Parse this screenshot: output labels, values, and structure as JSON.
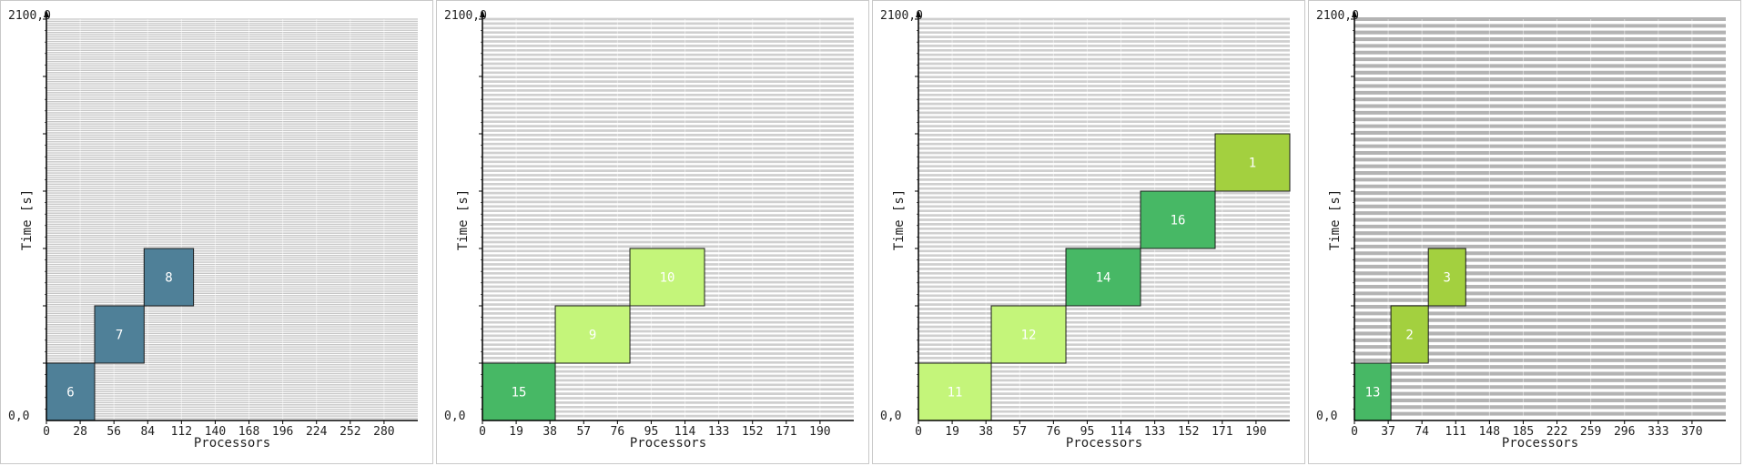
{
  "chart_data": [
    {
      "type": "gantt",
      "xlabel": "Processors",
      "ylabel": "Time [s]",
      "top_label": "2100,0",
      "origin_label": "0,0",
      "xlim": [
        0,
        308
      ],
      "ylim": [
        0,
        2100
      ],
      "x_ticks": [
        "0",
        "28",
        "56",
        "84",
        "112",
        "140",
        "168",
        "196",
        "224",
        "252",
        "280"
      ],
      "x_tick_values": [
        0,
        28,
        56,
        84,
        112,
        140,
        168,
        196,
        224,
        252,
        280
      ],
      "row_lines": 180,
      "color_grid": "#c6c6c6",
      "jobs": [
        {
          "label": "6",
          "x0": 0,
          "x1": 40,
          "y0": 0,
          "y1": 300,
          "color": "#4f8098",
          "text_color": "#ffffff"
        },
        {
          "label": "7",
          "x0": 40,
          "x1": 81,
          "y0": 300,
          "y1": 600,
          "color": "#4f8098",
          "text_color": "#ffffff"
        },
        {
          "label": "8",
          "x0": 81,
          "x1": 122,
          "y0": 600,
          "y1": 900,
          "color": "#4f8098",
          "text_color": "#ffffff"
        }
      ]
    },
    {
      "type": "gantt",
      "xlabel": "Processors",
      "ylabel": "Time [s]",
      "top_label": "2100,0",
      "origin_label": "0,0",
      "xlim": [
        0,
        209
      ],
      "ylim": [
        0,
        2100
      ],
      "x_ticks": [
        "0",
        "19",
        "38",
        "57",
        "76",
        "95",
        "114",
        "133",
        "152",
        "171",
        "190"
      ],
      "x_tick_values": [
        0,
        19,
        38,
        57,
        76,
        95,
        114,
        133,
        152,
        171,
        190
      ],
      "row_lines": 90,
      "color_grid": "#cfcfcf",
      "jobs": [
        {
          "label": "15",
          "x0": 0,
          "x1": 41,
          "y0": 0,
          "y1": 300,
          "color": "#47b865",
          "text_color": "#ffffff"
        },
        {
          "label": "9",
          "x0": 41,
          "x1": 83,
          "y0": 300,
          "y1": 600,
          "color": "#c4f57a",
          "text_color": "#ffffff"
        },
        {
          "label": "10",
          "x0": 83,
          "x1": 125,
          "y0": 600,
          "y1": 900,
          "color": "#c4f57a",
          "text_color": "#ffffff"
        }
      ]
    },
    {
      "type": "gantt",
      "xlabel": "Processors",
      "ylabel": "Time [s]",
      "top_label": "2100,0",
      "origin_label": "0,0",
      "xlim": [
        0,
        209
      ],
      "ylim": [
        0,
        2100
      ],
      "x_ticks": [
        "0",
        "19",
        "38",
        "57",
        "76",
        "95",
        "114",
        "133",
        "152",
        "171",
        "190"
      ],
      "x_tick_values": [
        0,
        19,
        38,
        57,
        76,
        95,
        114,
        133,
        152,
        171,
        190
      ],
      "row_lines": 90,
      "color_grid": "#cfcfcf",
      "jobs": [
        {
          "label": "11",
          "x0": 0,
          "x1": 41,
          "y0": 0,
          "y1": 300,
          "color": "#c4f57a",
          "text_color": "#ffffff"
        },
        {
          "label": "12",
          "x0": 41,
          "x1": 83,
          "y0": 300,
          "y1": 600,
          "color": "#c4f57a",
          "text_color": "#ffffff"
        },
        {
          "label": "14",
          "x0": 83,
          "x1": 125,
          "y0": 600,
          "y1": 900,
          "color": "#47b865",
          "text_color": "#ffffff"
        },
        {
          "label": "16",
          "x0": 125,
          "x1": 167,
          "y0": 900,
          "y1": 1200,
          "color": "#47b865",
          "text_color": "#ffffff"
        },
        {
          "label": "1",
          "x0": 167,
          "x1": 209,
          "y0": 1200,
          "y1": 1500,
          "color": "#a3d03f",
          "text_color": "#ffffff"
        }
      ]
    },
    {
      "type": "gantt",
      "xlabel": "Processors",
      "ylabel": "Time [s]",
      "top_label": "2100,0",
      "origin_label": "0,0",
      "xlim": [
        0,
        407
      ],
      "ylim": [
        0,
        2100
      ],
      "x_ticks": [
        "0",
        "37",
        "74",
        "111",
        "148",
        "185",
        "222",
        "259",
        "296",
        "333",
        "370"
      ],
      "x_tick_values": [
        0,
        37,
        74,
        111,
        148,
        185,
        222,
        259,
        296,
        333,
        370
      ],
      "row_lines": 60,
      "color_grid": "#b3b3b3",
      "jobs": [
        {
          "label": "13",
          "x0": 0,
          "x1": 40,
          "y0": 0,
          "y1": 300,
          "color": "#47b865",
          "text_color": "#ffffff"
        },
        {
          "label": "2",
          "x0": 40,
          "x1": 81,
          "y0": 300,
          "y1": 600,
          "color": "#a3d03f",
          "text_color": "#ffffff"
        },
        {
          "label": "3",
          "x0": 81,
          "x1": 122,
          "y0": 600,
          "y1": 900,
          "color": "#a3d03f",
          "text_color": "#ffffff"
        }
      ]
    }
  ]
}
